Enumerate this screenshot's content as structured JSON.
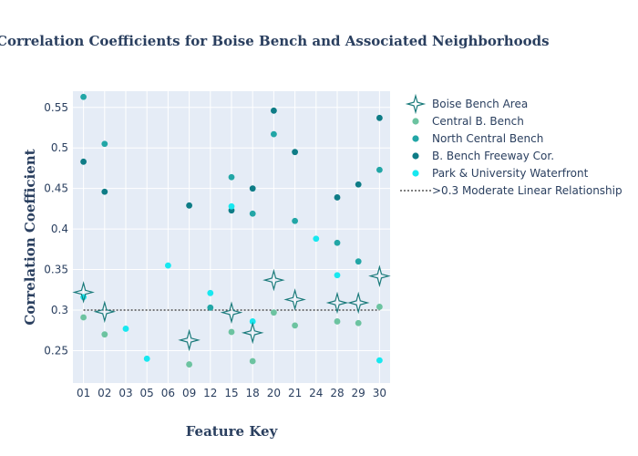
{
  "chart_data": {
    "type": "scatter",
    "title": "Correlation Coefficients for Boise Bench and Associated Neighborhoods",
    "xlabel": "Feature Key",
    "ylabel": "Correlation Coefficient",
    "categories": [
      "01",
      "02",
      "03",
      "05",
      "06",
      "09",
      "12",
      "15",
      "18",
      "20",
      "21",
      "24",
      "28",
      "29",
      "30"
    ],
    "ylim": [
      0.21,
      0.57
    ],
    "yticks": [
      0.25,
      0.3,
      0.35,
      0.4,
      0.45,
      0.5,
      0.55
    ],
    "ytick_labels": [
      "0.25",
      "0.3",
      "0.35",
      "0.4",
      "0.45",
      "0.5",
      "0.55"
    ],
    "grid": true,
    "legend_position": "right",
    "colors": {
      "plot_background": "#e5ecf6",
      "grid": "#ffffff",
      "boise_bench_area": "#1b7b7b",
      "central_b_bench": "#6cc3a0",
      "north_central_bench": "#22a6a6",
      "b_bench_freeway_cor": "#0e7c86",
      "park_university_waterfront": "#17e8f0",
      "threshold_line": "#000000"
    },
    "series": [
      {
        "name": "Boise Bench Area",
        "marker": "star",
        "x": [
          "01",
          "02",
          "09",
          "15",
          "18",
          "20",
          "21",
          "28",
          "29",
          "30"
        ],
        "values": [
          0.322,
          0.298,
          0.263,
          0.297,
          0.272,
          0.337,
          0.313,
          0.309,
          0.309,
          0.342
        ]
      },
      {
        "name": "Central B. Bench",
        "marker": "circle",
        "x": [
          "01",
          "02",
          "09",
          "15",
          "18",
          "20",
          "21",
          "28",
          "29",
          "30"
        ],
        "values": [
          0.291,
          0.27,
          0.233,
          0.273,
          0.237,
          0.297,
          0.281,
          0.286,
          0.284,
          0.304
        ]
      },
      {
        "name": "North Central Bench",
        "marker": "circle",
        "x": [
          "01",
          "02",
          "12",
          "15",
          "18",
          "20",
          "21",
          "28",
          "29",
          "30"
        ],
        "values": [
          0.563,
          0.505,
          0.303,
          0.464,
          0.419,
          0.517,
          0.41,
          0.383,
          0.36,
          0.473
        ]
      },
      {
        "name": "B. Bench Freeway Cor.",
        "marker": "circle",
        "x": [
          "01",
          "02",
          "09",
          "15",
          "18",
          "20",
          "21",
          "28",
          "29",
          "30"
        ],
        "values": [
          0.483,
          0.446,
          0.429,
          0.423,
          0.45,
          0.546,
          0.495,
          0.439,
          0.455,
          0.537
        ]
      },
      {
        "name": "Park & University Waterfront",
        "marker": "circle",
        "x": [
          "01",
          "03",
          "05",
          "06",
          "12",
          "15",
          "18",
          "24",
          "28",
          "30"
        ],
        "values": [
          0.316,
          0.277,
          0.24,
          0.355,
          0.321,
          0.428,
          0.286,
          0.388,
          0.343,
          0.238
        ]
      },
      {
        "name": ">0.3 Moderate Linear Relationship",
        "marker": "dotted-line",
        "x": [
          "01",
          "30"
        ],
        "values": [
          0.3,
          0.3
        ]
      }
    ]
  }
}
